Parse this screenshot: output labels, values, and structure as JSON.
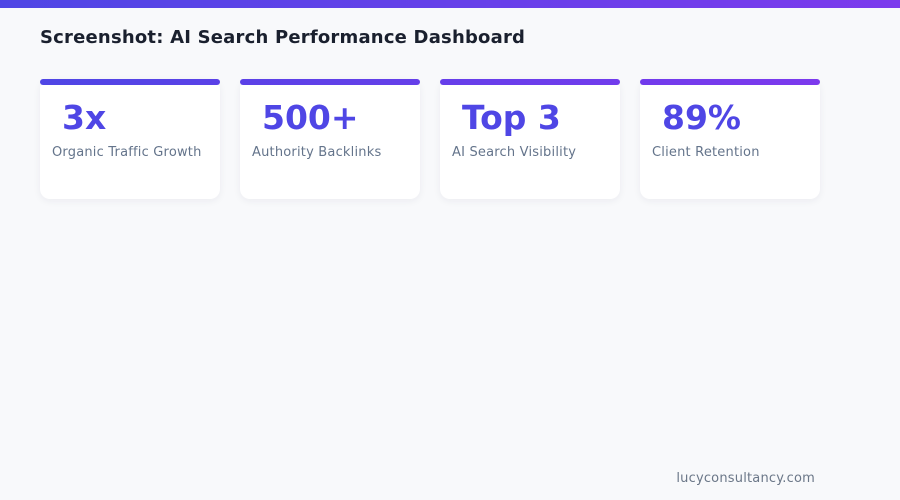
{
  "page": {
    "title": "Screenshot: AI Search Performance Dashboard",
    "footer_domain": "lucyconsultancy.com"
  },
  "colors": {
    "topbar_gradient_start": "#4f46e5",
    "topbar_gradient_end": "#7c3aed",
    "stat_number": "#4f46e5",
    "stat_label": "#64748b",
    "title_text": "#1a202e",
    "page_background": "#f8f9fb",
    "card_background": "#ffffff",
    "footer_text": "#6b7788"
  },
  "stats": [
    {
      "value": "3x",
      "label": "Organic Traffic Growth"
    },
    {
      "value": "500+",
      "label": "Authority Backlinks"
    },
    {
      "value": "Top 3",
      "label": "AI Search Visibility"
    },
    {
      "value": "89%",
      "label": "Client Retention"
    }
  ]
}
